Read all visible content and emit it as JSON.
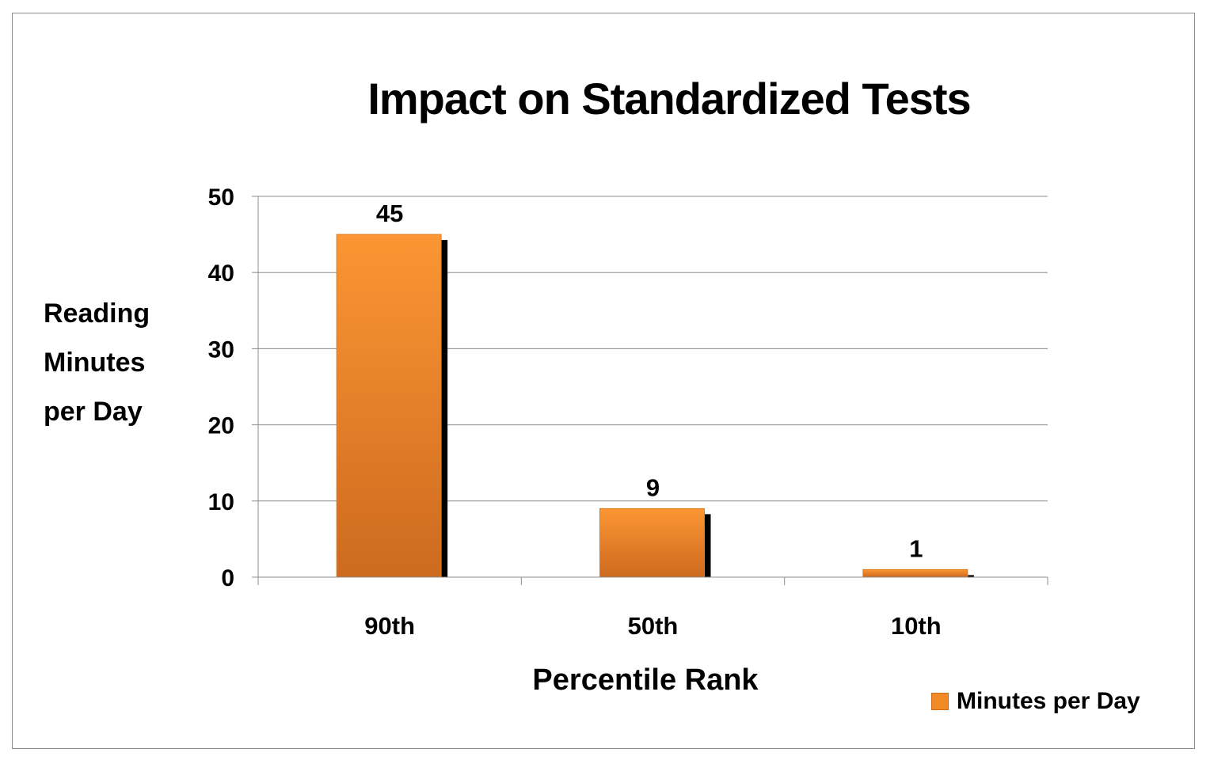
{
  "chart_data": {
    "type": "bar",
    "title": "Impact on Standardized Tests",
    "xlabel": "Percentile Rank",
    "ylabel": "Reading Minutes per Day",
    "ylabel_lines": [
      "Reading",
      "Minutes",
      "per Day"
    ],
    "categories": [
      "90th",
      "50th",
      "10th"
    ],
    "series": [
      {
        "name": "Minutes per Day",
        "values": [
          45,
          9,
          1
        ],
        "color": "#f28a26"
      }
    ],
    "data_labels": [
      "45",
      "9",
      "1"
    ],
    "ylim": [
      0,
      50
    ],
    "yticks": [
      0,
      10,
      20,
      30,
      40,
      50
    ],
    "grid": true,
    "legend_position": "bottom-right",
    "shadow_color": "#000000"
  }
}
